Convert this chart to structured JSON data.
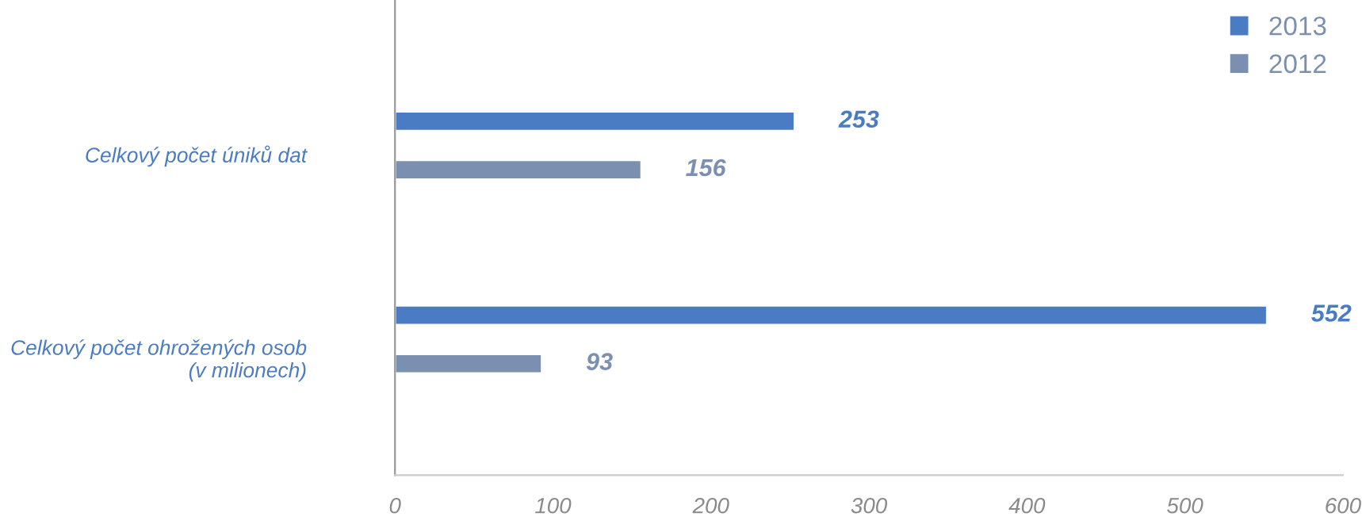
{
  "chart_data": {
    "type": "bar",
    "orientation": "horizontal",
    "categories": [
      "Celkový počet úniků dat",
      "Celkový počet ohrožených osob\n(v milionech)"
    ],
    "series": [
      {
        "name": "2013",
        "color": "#4a7cc4",
        "values": [
          253,
          552
        ]
      },
      {
        "name": "2012",
        "color": "#7b8fb0",
        "values": [
          156,
          93
        ]
      }
    ],
    "xlim": [
      0,
      600
    ],
    "xticks": [
      0,
      100,
      200,
      300,
      400,
      500,
      600
    ],
    "data_labels": true,
    "legend": "top right",
    "grid": false
  }
}
